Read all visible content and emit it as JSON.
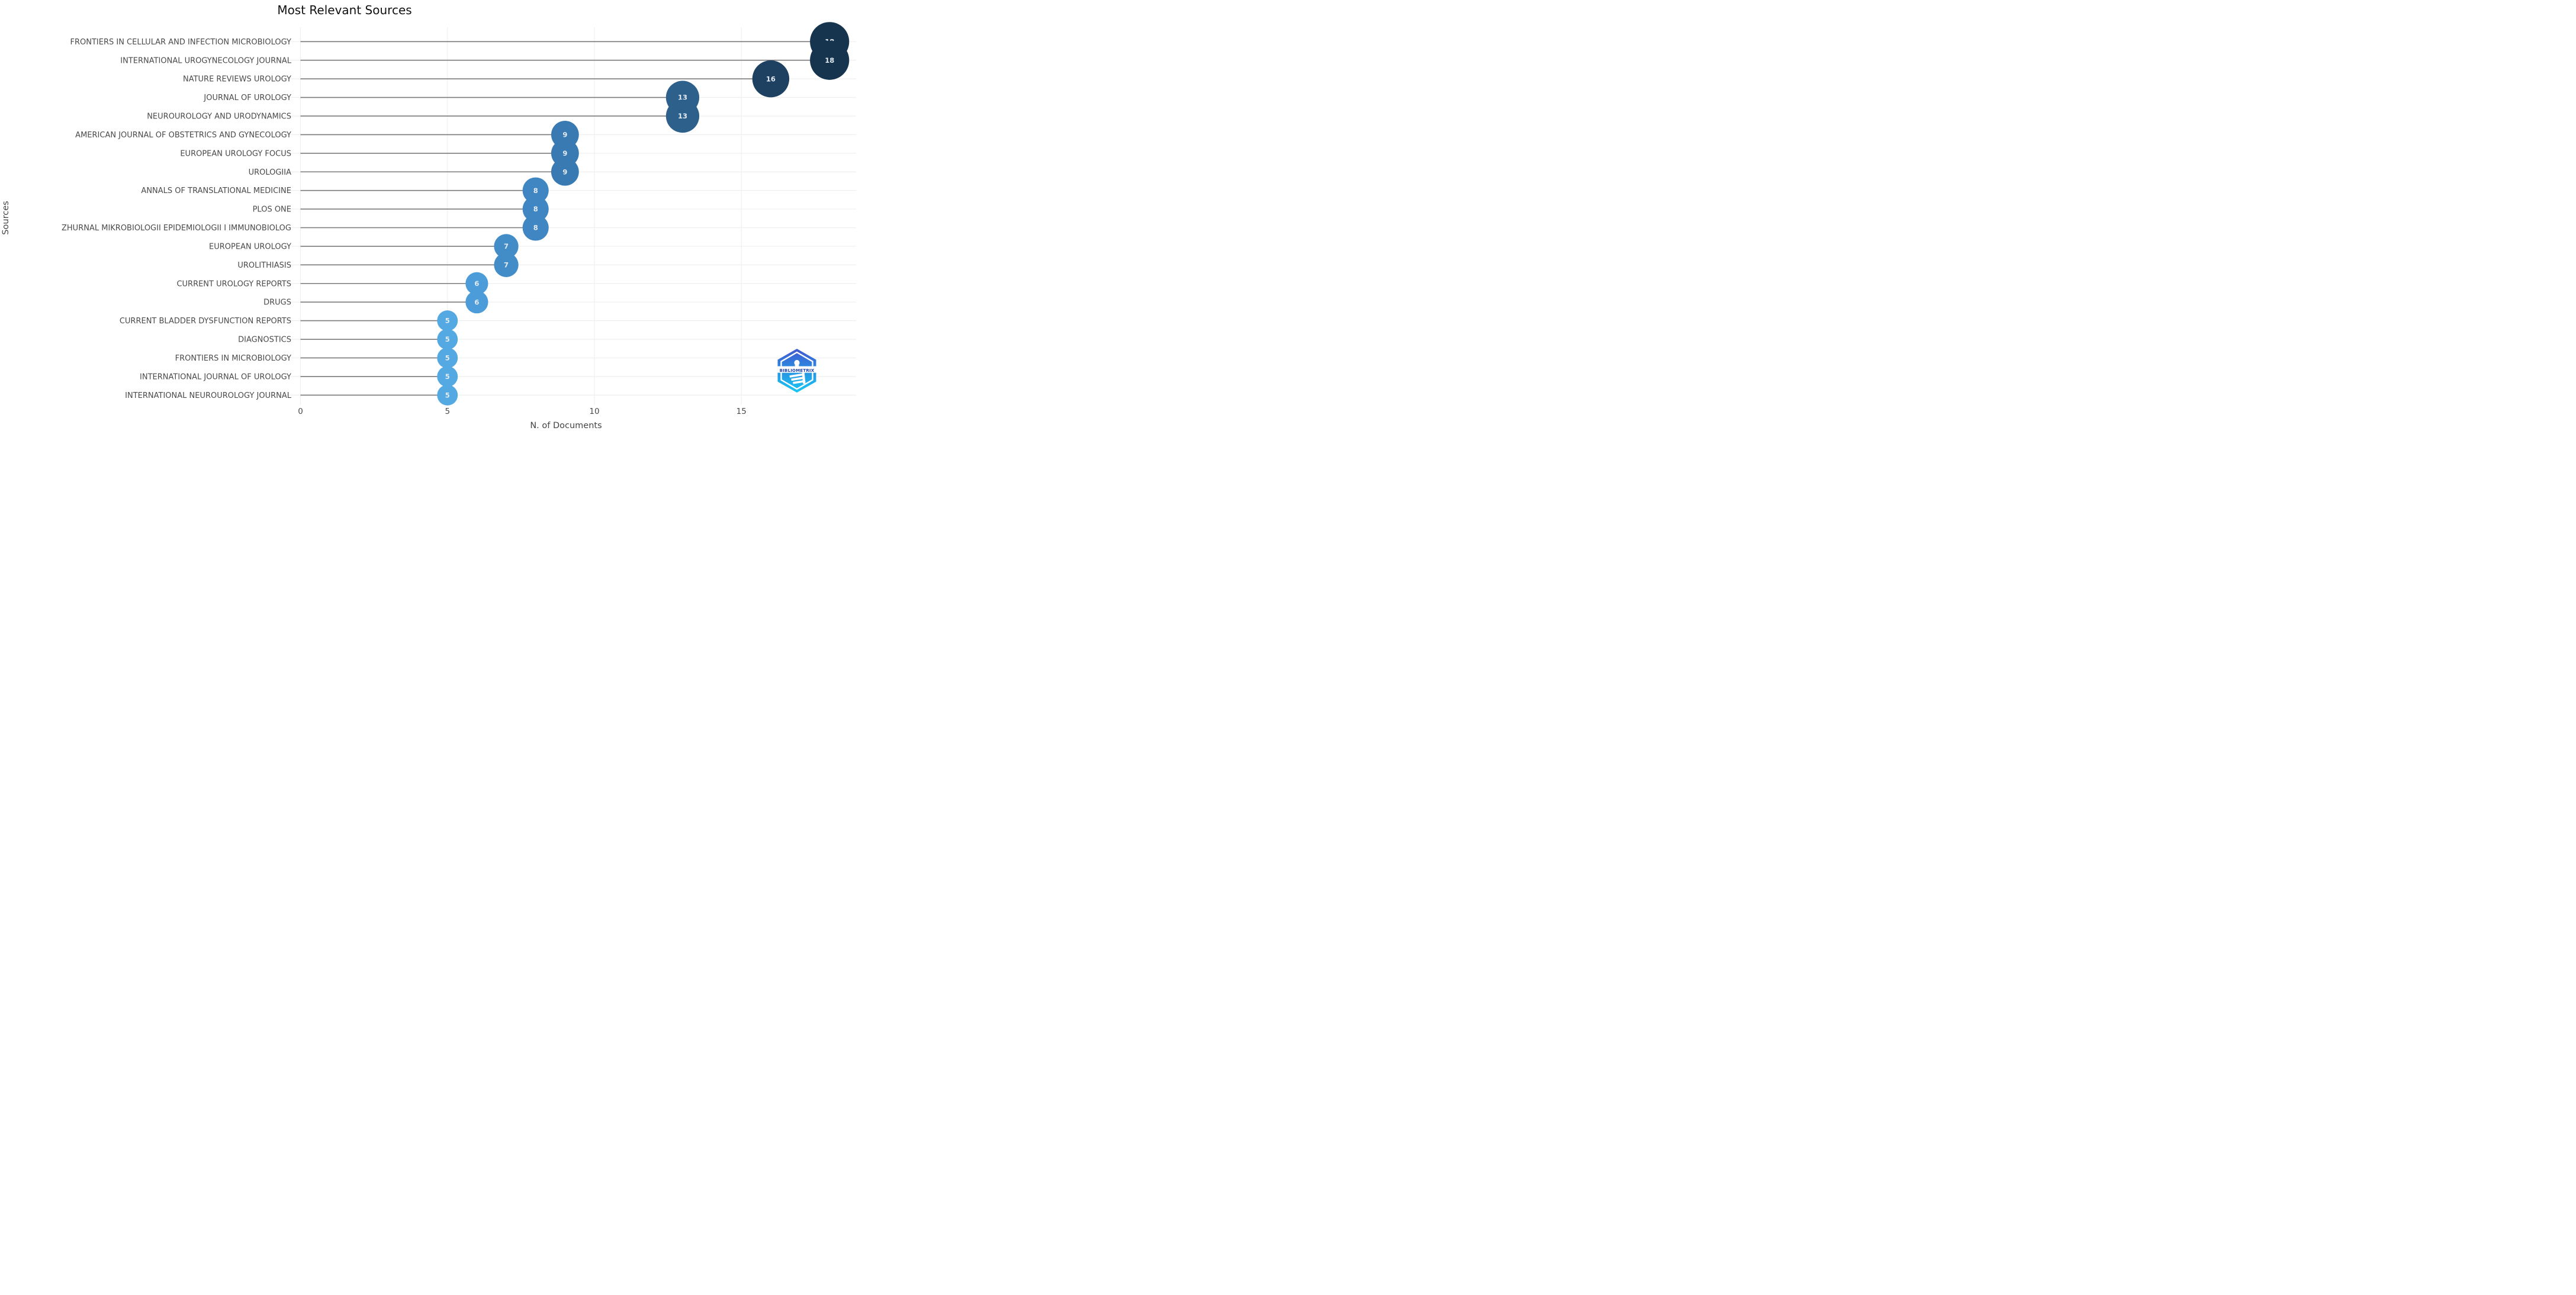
{
  "chart_data": {
    "type": "scatter",
    "variant": "lollipop-bubble",
    "title": "Most Relevant Sources",
    "xlabel": "N. of Documents",
    "ylabel": "Sources",
    "xlim": [
      0,
      19
    ],
    "xticks": [
      0,
      5,
      10,
      15
    ],
    "grid": true,
    "legend": "none",
    "categories": [
      "FRONTIERS IN CELLULAR AND INFECTION MICROBIOLOGY",
      "INTERNATIONAL UROGYNECOLOGY JOURNAL",
      "NATURE REVIEWS UROLOGY",
      "JOURNAL OF UROLOGY",
      "NEUROUROLOGY AND URODYNAMICS",
      "AMERICAN JOURNAL OF OBSTETRICS AND GYNECOLOGY",
      "EUROPEAN UROLOGY FOCUS",
      "UROLOGIIA",
      "ANNALS OF TRANSLATIONAL MEDICINE",
      "PLOS ONE",
      "ZHURNAL MIKROBIOLOGII EPIDEMIOLOGII I IMMUNOBIOLOG",
      "EUROPEAN UROLOGY",
      "UROLITHIASIS",
      "CURRENT UROLOGY REPORTS",
      "DRUGS",
      "CURRENT BLADDER DYSFUNCTION REPORTS",
      "DIAGNOSTICS",
      "FRONTIERS IN MICROBIOLOGY",
      "INTERNATIONAL JOURNAL OF UROLOGY",
      "INTERNATIONAL NEUROUROLOGY JOURNAL"
    ],
    "values": [
      18,
      18,
      16,
      13,
      13,
      9,
      9,
      9,
      8,
      8,
      8,
      7,
      7,
      6,
      6,
      5,
      5,
      5,
      5,
      5
    ],
    "point_colors": [
      "#17344f",
      "#17344f",
      "#1f4161",
      "#2e608c",
      "#2e608c",
      "#3a7ab2",
      "#3a7ab2",
      "#3a7ab2",
      "#3f86c3",
      "#3f86c3",
      "#3f86c3",
      "#428cc8",
      "#428cc8",
      "#4c9cd9",
      "#4c9cd9",
      "#55a9e2",
      "#55a9e2",
      "#55a9e2",
      "#55a9e2",
      "#55a9e2"
    ],
    "colors": {
      "stem": "#7a7a7a",
      "grid": "#efefef",
      "value_label": "#e4ebf2",
      "tick_label": "#4a4a4a",
      "axis_title": "#444444",
      "title": "#111111",
      "background": "#ffffff"
    }
  },
  "logo": {
    "label": "BIBLIOMETRIX",
    "colors": {
      "gradient_top": "#4257d0",
      "gradient_mid": "#2b8be0",
      "gradient_bottom": "#18c9f2",
      "text": "#1b3fae",
      "band": "#ffffff"
    }
  }
}
